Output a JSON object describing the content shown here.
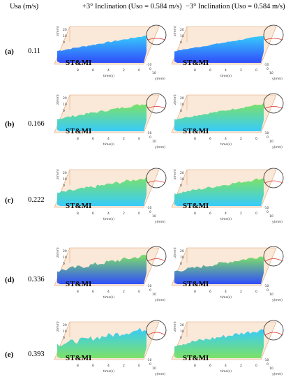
{
  "header": {
    "usa_label": "Usa (m/s)",
    "col1_title": "+3° Inclination (Uso = 0.584 m/s)",
    "col2_title": "−3° Inclination (Uso = 0.584 m/s)"
  },
  "rows": [
    {
      "label": "(a)",
      "usa": "0.11"
    },
    {
      "label": "(b)",
      "usa": "0.166"
    },
    {
      "label": "(c)",
      "usa": "0.222"
    },
    {
      "label": "(d)",
      "usa": "0.336"
    },
    {
      "label": "(e)",
      "usa": "0.393"
    }
  ],
  "panel_tag": "ST&MI",
  "axes": {
    "z_ticks": [
      "20",
      "10",
      "0"
    ],
    "t_ticks": [
      "8",
      "6",
      "4",
      "2",
      "0"
    ],
    "y_ticks": [
      "-10",
      "0",
      "10"
    ],
    "z_label": "z(mm)",
    "t_label": "time(s)",
    "y_label": "y(mm)"
  },
  "colors": {
    "pipe_fill": "#f6d5b8",
    "pipe_edge": "#e0a070",
    "low_blue": "#1a3cff",
    "mid_cyan": "#22c8ff",
    "high_green": "#6fe05a",
    "circle_red": "#d9332a"
  }
}
